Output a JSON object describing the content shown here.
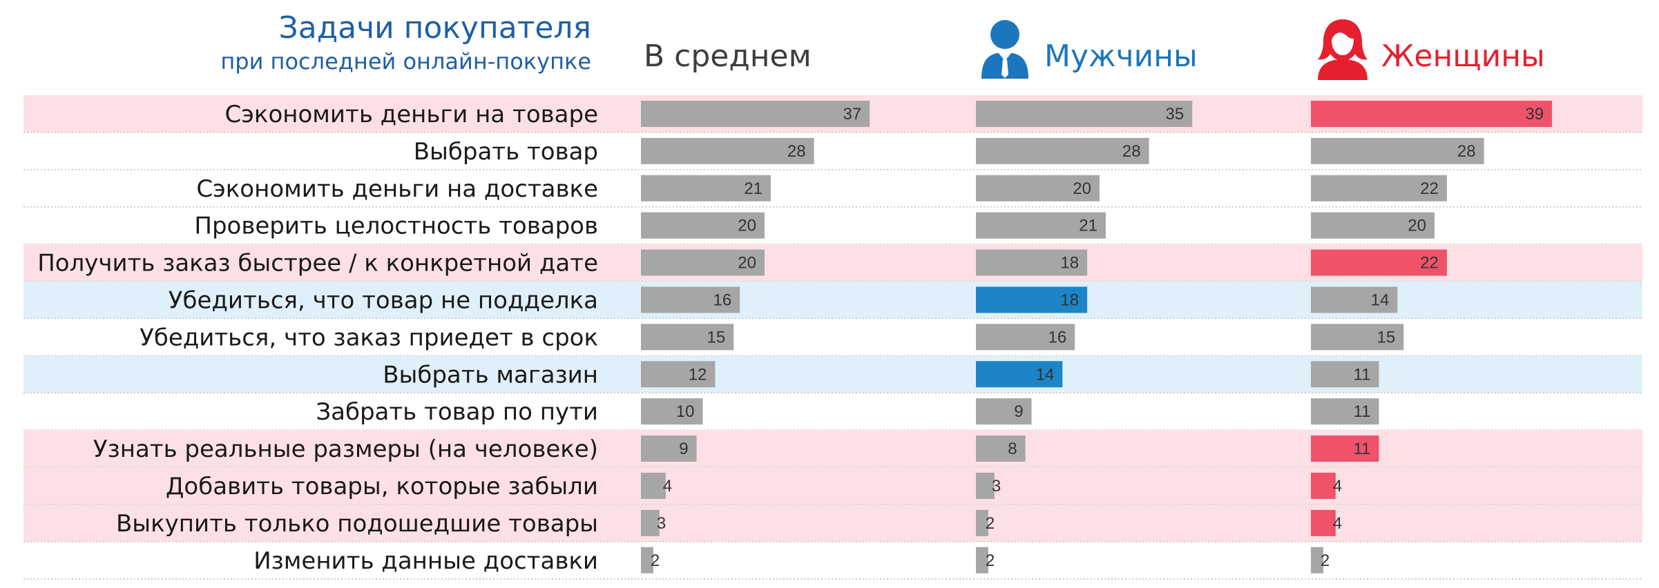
{
  "chart_data": {
    "type": "bar",
    "orientation": "horizontal",
    "title": "Задачи покупателя",
    "subtitle": "при последней онлайн-покупке",
    "categories": [
      "Сэкономить деньги на товаре",
      "Выбрать товар",
      "Сэкономить деньги на доставке",
      "Проверить целостность товаров",
      "Получить заказ быстрее / к конкретной дате",
      "Убедиться, что товар не подделка",
      "Убедиться, что заказ приедет в срок",
      "Выбрать магазин",
      "Забрать товар по пути",
      "Узнать реальные размеры (на человеке)",
      "Добавить товары, которые забыли",
      "Выкупить только подошедшие товары",
      "Изменить данные доставки"
    ],
    "row_highlight": [
      "pink",
      "none",
      "none",
      "none",
      "pink",
      "blue",
      "none",
      "blue",
      "none",
      "pink",
      "pink",
      "pink",
      "none"
    ],
    "series": [
      {
        "name": "В среднем",
        "values": [
          37,
          28,
          21,
          20,
          20,
          16,
          15,
          12,
          10,
          9,
          4,
          3,
          2
        ],
        "highlight": [
          false,
          false,
          false,
          false,
          false,
          false,
          false,
          false,
          false,
          false,
          false,
          false,
          false
        ]
      },
      {
        "name": "Мужчины",
        "values": [
          35,
          28,
          20,
          21,
          18,
          18,
          16,
          14,
          9,
          8,
          3,
          2,
          2
        ],
        "highlight": [
          false,
          false,
          false,
          false,
          false,
          true,
          false,
          true,
          false,
          false,
          false,
          false,
          false
        ]
      },
      {
        "name": "Женщины",
        "values": [
          39,
          28,
          22,
          20,
          22,
          14,
          15,
          11,
          11,
          11,
          4,
          4,
          2
        ],
        "highlight": [
          true,
          false,
          false,
          false,
          true,
          false,
          false,
          false,
          false,
          true,
          true,
          true,
          false
        ]
      }
    ],
    "xlim": [
      0,
      40
    ],
    "show_values": true,
    "grid": false
  },
  "colors": {
    "bar_default": "#a6a6a6",
    "bar_men_highlight": "#1b85c8",
    "bar_women_highlight": "#ef5269",
    "row_pink": "#fde0e5",
    "row_blue": "#dff0fa",
    "title": "#1f5fa5",
    "header_average": "#3d3d3d",
    "header_men": "#1b76bd",
    "header_women": "#e5202e",
    "divider": "#bfbfbf"
  },
  "icons": {
    "men": "man-icon",
    "women": "woman-icon"
  }
}
